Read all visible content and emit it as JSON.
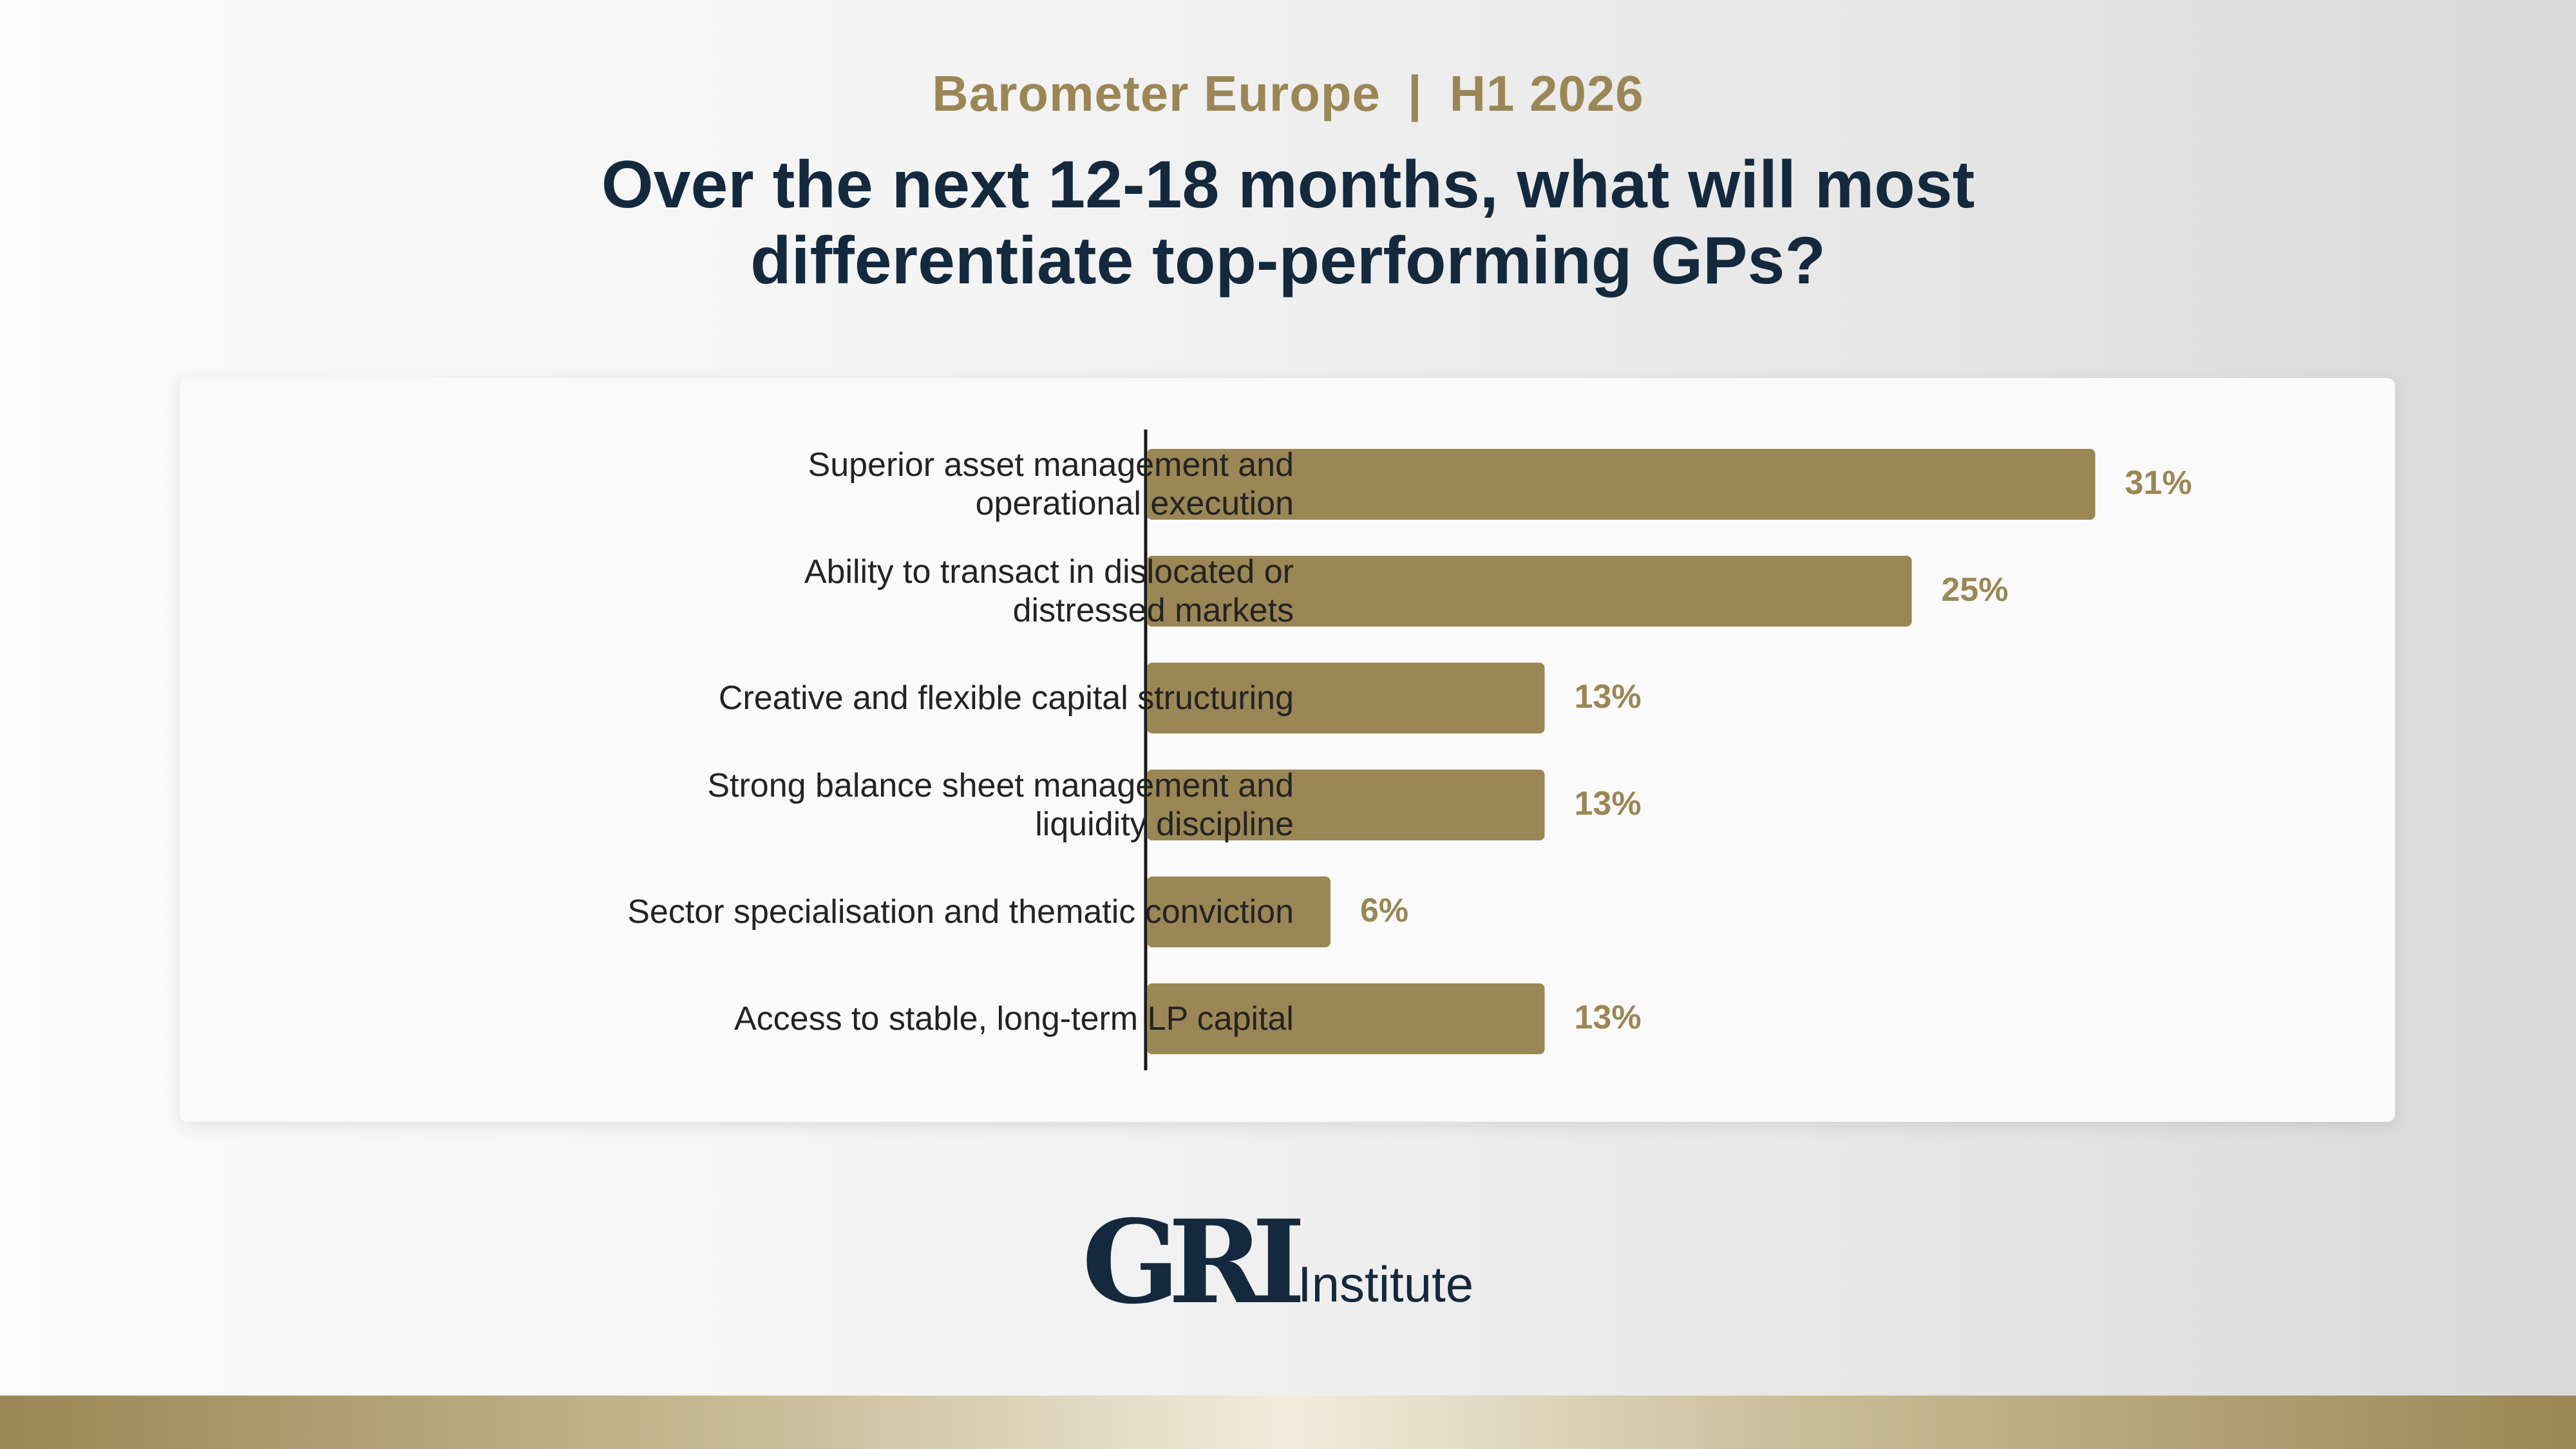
{
  "header": {
    "kicker_left": "Barometer Europe",
    "kicker_sep": "|",
    "kicker_right": "H1 2026",
    "question_line1": "Over the next 12-18 months, what will most",
    "question_line2": "differentiate top-performing GPs?"
  },
  "chart_data": {
    "type": "bar",
    "orientation": "horizontal",
    "categories": [
      [
        "Superior asset management and",
        "operational execution"
      ],
      [
        "Ability to transact in dislocated or",
        "distressed markets"
      ],
      [
        "Creative and flexible capital structuring"
      ],
      [
        "Strong balance sheet management and",
        "liquidity discipline"
      ],
      [
        "Sector specialisation and thematic conviction"
      ],
      [
        "Access to stable, long-term LP capital"
      ]
    ],
    "values": [
      31,
      25,
      13,
      13,
      6,
      13
    ],
    "value_labels": [
      "31%",
      "25%",
      "13%",
      "13%",
      "6%",
      "13%"
    ],
    "unit": "%",
    "xlim": [
      0,
      34
    ],
    "grid": false,
    "legend": "none",
    "bar_color": "#9b8755",
    "label_color": "#9b8755"
  },
  "logo": {
    "mark": "GRI",
    "word": "Institute"
  },
  "colors": {
    "accent": "#9b8755",
    "title": "#14293d",
    "text": "#232323"
  }
}
